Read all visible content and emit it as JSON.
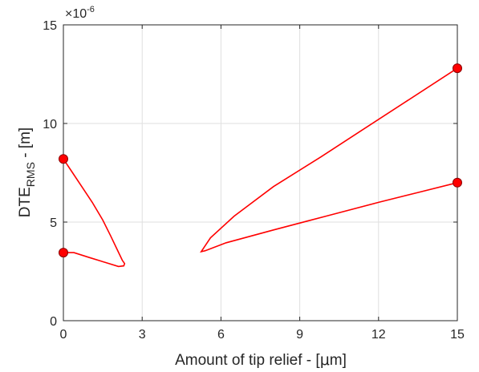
{
  "chart_data": {
    "type": "line",
    "xlabel_main": "Amount of tip relief - [",
    "xlabel_mu": "μ",
    "xlabel_end": "m]",
    "ylabel_main": "DTE",
    "ylabel_sub": "RMS",
    "ylabel_end": " - [m]",
    "y_exponent_base": "×10",
    "y_exponent_power": "-6",
    "xlim": [
      0,
      15
    ],
    "ylim": [
      0,
      15
    ],
    "xticks": [
      0,
      3,
      6,
      9,
      12,
      15
    ],
    "yticks": [
      0,
      5,
      10,
      15
    ],
    "grid": true,
    "line_color": "#ff0000",
    "series": [
      {
        "x": [
          0,
          0.3,
          0.7,
          1.1,
          1.5,
          1.8,
          2.05,
          2.25,
          2.33,
          2.3,
          2.1,
          1.6,
          1.0,
          0.4,
          0
        ],
        "y": [
          8.2,
          7.6,
          6.8,
          6.0,
          5.1,
          4.3,
          3.6,
          3.05,
          2.9,
          2.78,
          2.75,
          2.95,
          3.2,
          3.45,
          3.45
        ]
      },
      {
        "x": [
          15,
          11.3,
          9.8,
          8.0,
          6.5,
          5.6,
          5.25,
          5.4,
          6.2,
          8.0,
          10.0,
          12.0,
          13.5,
          15
        ],
        "y": [
          12.8,
          9.6,
          8.3,
          6.8,
          5.3,
          4.2,
          3.5,
          3.55,
          3.95,
          4.6,
          5.3,
          6.0,
          6.5,
          7.0
        ]
      }
    ],
    "markers": [
      {
        "x": 0,
        "y": 8.2
      },
      {
        "x": 0,
        "y": 3.45
      },
      {
        "x": 15,
        "y": 12.8
      },
      {
        "x": 15,
        "y": 7.0
      }
    ]
  }
}
